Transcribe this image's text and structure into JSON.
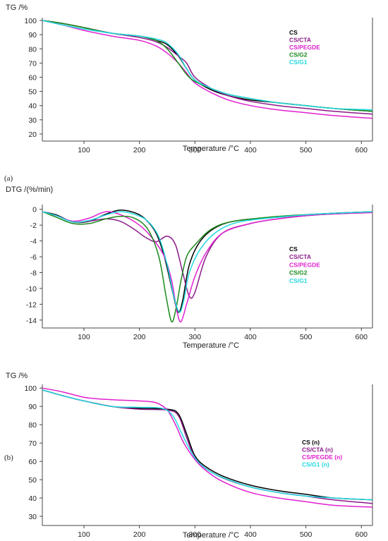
{
  "figure": {
    "labels": {
      "a": "(a)",
      "b": "(b)"
    }
  },
  "chart_data": [
    {
      "type": "line",
      "title": "",
      "ylabel": "TG /%",
      "xlabel": "Temperature /°C",
      "xlim": [
        25,
        620
      ],
      "ylim": [
        15,
        102
      ],
      "x_ticks": [
        100,
        200,
        300,
        400,
        500,
        600
      ],
      "y_ticks": [
        20,
        30,
        40,
        50,
        60,
        70,
        80,
        90,
        100
      ],
      "grid": false,
      "legend_position": "right",
      "series": [
        {
          "name": "CS",
          "color": "#000000",
          "x": [
            25,
            60,
            100,
            150,
            200,
            230,
            250,
            270,
            285,
            300,
            330,
            360,
            400,
            450,
            500,
            550,
            620
          ],
          "y": [
            100,
            98,
            95,
            91,
            89,
            86,
            83,
            75,
            66,
            58,
            51,
            47,
            44,
            42,
            40,
            38,
            36
          ]
        },
        {
          "name": "CS/CTA",
          "color": "#8B1A89",
          "x": [
            25,
            60,
            100,
            150,
            200,
            230,
            250,
            270,
            285,
            300,
            330,
            360,
            400,
            450,
            500,
            550,
            620
          ],
          "y": [
            100,
            98,
            95,
            91,
            88,
            85,
            81,
            75,
            70,
            60,
            52,
            47,
            43,
            40,
            38,
            36,
            34
          ]
        },
        {
          "name": "CS/PEGDE",
          "color": "#E020D0",
          "x": [
            25,
            60,
            100,
            150,
            200,
            230,
            250,
            270,
            285,
            300,
            330,
            360,
            400,
            450,
            500,
            550,
            620
          ],
          "y": [
            100,
            97,
            93,
            89,
            86,
            82,
            77,
            70,
            63,
            56,
            49,
            44,
            40,
            37,
            35,
            33,
            31
          ]
        },
        {
          "name": "CS/G2",
          "color": "#1A8A1A",
          "x": [
            25,
            60,
            100,
            150,
            200,
            230,
            250,
            270,
            285,
            300,
            330,
            360,
            400,
            450,
            500,
            550,
            620
          ],
          "y": [
            100,
            98,
            95,
            91,
            89,
            86,
            80,
            70,
            62,
            57,
            52,
            48,
            45,
            42,
            40,
            38,
            36
          ]
        },
        {
          "name": "CS/G1",
          "color": "#22D8E0",
          "x": [
            25,
            60,
            100,
            150,
            200,
            230,
            250,
            270,
            285,
            300,
            330,
            360,
            400,
            450,
            500,
            550,
            620
          ],
          "y": [
            100,
            97,
            94,
            91,
            89,
            87,
            84,
            76,
            66,
            58,
            52,
            48,
            45,
            42,
            40,
            38,
            37
          ]
        }
      ]
    },
    {
      "type": "line",
      "title": "",
      "ylabel": "DTG /(%/min)",
      "xlabel": "Temperature /°C",
      "xlim": [
        25,
        620
      ],
      "ylim": [
        -15,
        0.6
      ],
      "x_ticks": [
        100,
        200,
        300,
        400,
        500,
        600
      ],
      "y_ticks": [
        0,
        -2,
        -4,
        -6,
        -8,
        -10,
        -12,
        -14
      ],
      "grid": false,
      "legend_position": "right",
      "series": [
        {
          "name": "CS",
          "color": "#000000",
          "x": [
            25,
            50,
            80,
            110,
            140,
            165,
            190,
            210,
            230,
            245,
            260,
            270,
            278,
            290,
            310,
            340,
            380,
            450,
            520,
            620
          ],
          "y": [
            -0.3,
            -0.7,
            -1.6,
            -1.5,
            -0.6,
            -0.1,
            -0.4,
            -1.2,
            -3,
            -6,
            -10.5,
            -13,
            -11.5,
            -7,
            -4,
            -2.2,
            -1.4,
            -1,
            -0.6,
            -0.3
          ]
        },
        {
          "name": "CS/CTA",
          "color": "#8B1A89",
          "x": [
            25,
            50,
            80,
            110,
            140,
            165,
            190,
            210,
            230,
            250,
            265,
            278,
            290,
            300,
            320,
            350,
            400,
            450,
            520,
            620
          ],
          "y": [
            -0.3,
            -0.8,
            -1.6,
            -1.5,
            -1.2,
            -1.5,
            -2.5,
            -3.5,
            -4.1,
            -3.4,
            -4.5,
            -8,
            -11,
            -10.5,
            -6,
            -3,
            -1.8,
            -1.2,
            -0.7,
            -0.4
          ]
        },
        {
          "name": "CS/PEGDE",
          "color": "#E020D0",
          "x": [
            25,
            50,
            80,
            110,
            140,
            170,
            200,
            225,
            245,
            258,
            268,
            275,
            285,
            300,
            320,
            350,
            400,
            450,
            520,
            620
          ],
          "y": [
            -0.3,
            -0.8,
            -1.5,
            -1.1,
            -0.3,
            -0.8,
            -2,
            -3.8,
            -6,
            -9,
            -13,
            -14.2,
            -12,
            -8.5,
            -5.5,
            -3,
            -1.8,
            -1.2,
            -0.7,
            -0.4
          ]
        },
        {
          "name": "CS/G2",
          "color": "#1A8A1A",
          "x": [
            25,
            50,
            80,
            110,
            140,
            165,
            190,
            215,
            235,
            248,
            258,
            266,
            275,
            285,
            300,
            330,
            370,
            450,
            520,
            620
          ],
          "y": [
            -0.3,
            -1,
            -1.8,
            -1.8,
            -1.2,
            -0.9,
            -1.1,
            -2.5,
            -6,
            -11,
            -14.2,
            -12.5,
            -9,
            -6,
            -4.5,
            -2.5,
            -1.5,
            -0.9,
            -0.6,
            -0.3
          ]
        },
        {
          "name": "CS/G1",
          "color": "#22D8E0",
          "x": [
            25,
            50,
            80,
            110,
            140,
            165,
            190,
            215,
            235,
            250,
            262,
            272,
            280,
            290,
            310,
            340,
            380,
            450,
            520,
            620
          ],
          "y": [
            -0.3,
            -0.8,
            -1.6,
            -1.4,
            -0.7,
            -0.3,
            -0.6,
            -1.5,
            -3.5,
            -7,
            -11,
            -13,
            -11.5,
            -8,
            -5,
            -2.8,
            -1.6,
            -1,
            -0.6,
            -0.3
          ]
        }
      ]
    },
    {
      "type": "line",
      "title": "",
      "ylabel": "TG /%",
      "xlabel": "Temperature /°C",
      "xlim": [
        25,
        620
      ],
      "ylim": [
        25,
        102
      ],
      "x_ticks": [
        100,
        200,
        300,
        400,
        500,
        600
      ],
      "y_ticks": [
        30,
        40,
        50,
        60,
        70,
        80,
        90,
        100
      ],
      "grid": false,
      "legend_position": "right",
      "series": [
        {
          "name": "CS (n)",
          "color": "#000000",
          "x": [
            25,
            60,
            100,
            150,
            200,
            250,
            270,
            285,
            300,
            320,
            350,
            400,
            450,
            500,
            550,
            620
          ],
          "y": [
            99,
            96,
            93,
            90,
            89,
            88.5,
            86,
            75,
            63,
            57,
            52,
            47,
            44,
            42,
            40,
            39
          ]
        },
        {
          "name": "CS/CTA (n)",
          "color": "#8B1A89",
          "x": [
            25,
            60,
            100,
            150,
            200,
            250,
            270,
            285,
            300,
            320,
            350,
            400,
            450,
            500,
            550,
            620
          ],
          "y": [
            99,
            96,
            93,
            90,
            88.5,
            88,
            85,
            73,
            62,
            56,
            51,
            46,
            43,
            41,
            39,
            37
          ]
        },
        {
          "name": "CS/PEGDE (n)",
          "color": "#E020D0",
          "x": [
            25,
            60,
            100,
            130,
            160,
            200,
            230,
            250,
            265,
            280,
            300,
            320,
            350,
            400,
            450,
            500,
            550,
            620
          ],
          "y": [
            100,
            98,
            95,
            94,
            93.5,
            93,
            92,
            88,
            80,
            70,
            61,
            55,
            49,
            43,
            40,
            38,
            36,
            35
          ]
        },
        {
          "name": "CS/G1 (n)",
          "color": "#22D8E0",
          "x": [
            25,
            60,
            100,
            150,
            200,
            240,
            260,
            275,
            290,
            305,
            330,
            360,
            400,
            450,
            500,
            550,
            620
          ],
          "y": [
            99,
            96,
            93,
            90,
            89.5,
            89,
            85,
            76,
            67,
            60,
            54,
            50,
            46,
            43,
            41,
            40,
            39
          ]
        }
      ]
    }
  ]
}
